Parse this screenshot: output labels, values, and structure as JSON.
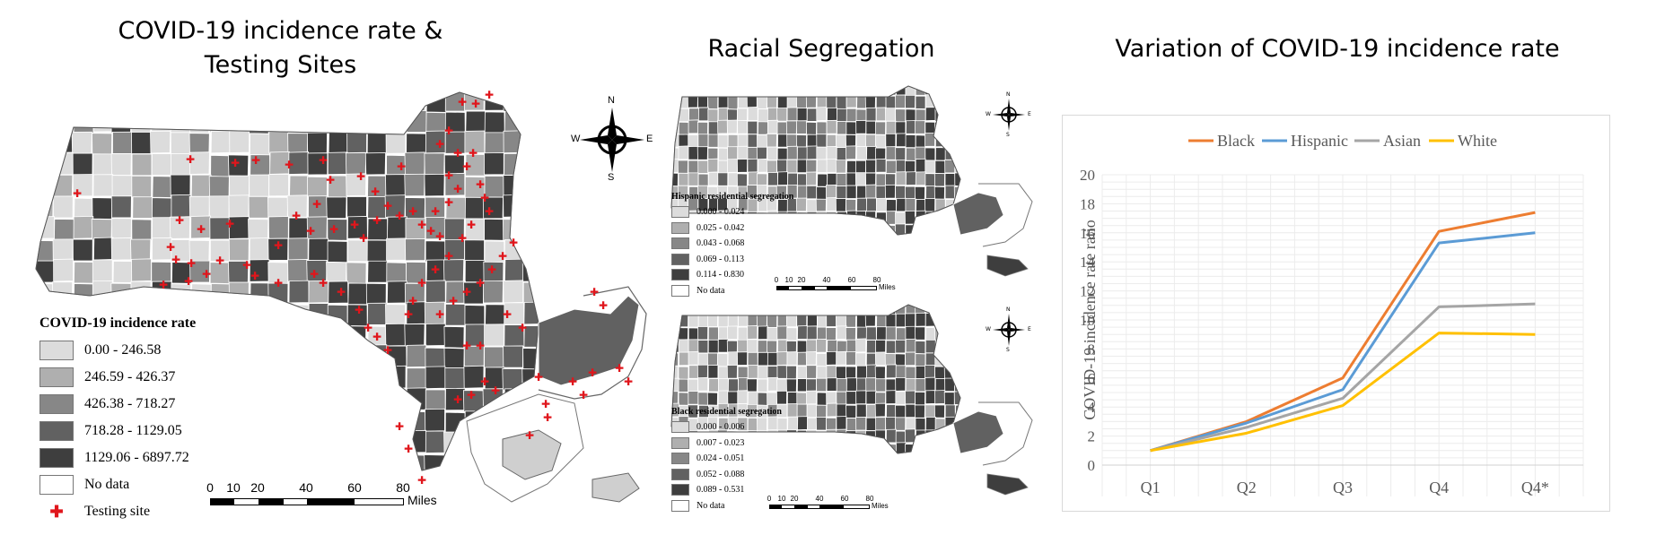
{
  "panels": {
    "incidence_title_line1": "COVID-19 incidence rate &",
    "incidence_title_line2": "Testing Sites",
    "segregation_title": "Racial Segregation",
    "variation_title": "Variation of COVID-19 incidence rate"
  },
  "compass": {
    "n": "N",
    "s": "S",
    "e": "E",
    "w": "W"
  },
  "incidence_legend": {
    "title": "COVID-19 incidence rate",
    "classes": [
      {
        "label": "0.00 - 246.58",
        "color": "#dcdcdc"
      },
      {
        "label": "246.59 - 426.37",
        "color": "#afafaf"
      },
      {
        "label": "426.38 - 718.27",
        "color": "#878787"
      },
      {
        "label": "718.28 - 1129.05",
        "color": "#616161"
      },
      {
        "label": "1129.06 - 6897.72",
        "color": "#3e3e3e"
      }
    ],
    "nodata": "No data",
    "testing": "Testing site",
    "testing_color": "#e0161c"
  },
  "scale": {
    "ticks": [
      "0",
      "10",
      "20",
      "40",
      "60",
      "80"
    ],
    "unit": "Miles"
  },
  "hispanic_legend": {
    "title": "Hispanic residential segregation",
    "classes": [
      {
        "label": "0.000 - 0.024",
        "color": "#dcdcdc"
      },
      {
        "label": "0.025 - 0.042",
        "color": "#afafaf"
      },
      {
        "label": "0.043 - 0.068",
        "color": "#878787"
      },
      {
        "label": "0.069 - 0.113",
        "color": "#616161"
      },
      {
        "label": "0.114 - 0.830",
        "color": "#3e3e3e"
      }
    ],
    "nodata": "No data"
  },
  "black_legend": {
    "title": "Black residential segregation",
    "classes": [
      {
        "label": "0.000 - 0.006",
        "color": "#dcdcdc"
      },
      {
        "label": "0.007 - 0.023",
        "color": "#afafaf"
      },
      {
        "label": "0.024 - 0.051",
        "color": "#878787"
      },
      {
        "label": "0.052 - 0.088",
        "color": "#616161"
      },
      {
        "label": "0.089 - 0.531",
        "color": "#3e3e3e"
      }
    ],
    "nodata": "No data"
  },
  "chart_data": {
    "type": "line",
    "title": "Variation of COVID-19 incidence rate",
    "xlabel": "",
    "ylabel": "COVID-19 incidence rate ratio",
    "categories": [
      "Q1",
      "Q2",
      "Q3",
      "Q4",
      "Q4*"
    ],
    "ylim": [
      0,
      20
    ],
    "yticks": [
      0,
      2,
      4,
      6,
      8,
      10,
      12,
      14,
      16,
      18,
      20
    ],
    "grid": true,
    "legend_position": "top",
    "series": [
      {
        "name": "Black",
        "color": "#ed7d31",
        "values": [
          1,
          3.0,
          6.0,
          16.1,
          17.4
        ]
      },
      {
        "name": "Hispanic",
        "color": "#5b9bd5",
        "values": [
          1,
          2.9,
          5.2,
          15.3,
          16.0
        ]
      },
      {
        "name": "Asian",
        "color": "#a5a5a5",
        "values": [
          1,
          2.6,
          4.6,
          10.9,
          11.1
        ]
      },
      {
        "name": "White",
        "color": "#ffc000",
        "values": [
          1,
          2.2,
          4.1,
          9.1,
          9.0
        ]
      }
    ]
  }
}
